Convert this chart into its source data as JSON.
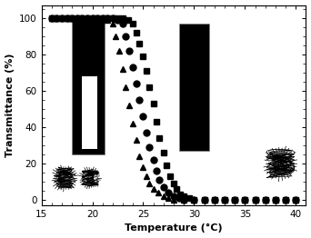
{
  "title": "",
  "xlabel": "Temperature (°C)",
  "ylabel": "Transmittance (%)",
  "xlim": [
    15.5,
    41
  ],
  "ylim": [
    -3,
    107
  ],
  "xticks": [
    15,
    20,
    25,
    30,
    35,
    40
  ],
  "yticks": [
    0,
    20,
    40,
    60,
    80,
    100
  ],
  "background_color": "#ffffff",
  "series": {
    "triangles": {
      "marker": "^",
      "markersize": 5,
      "x": [
        16,
        16.5,
        17,
        17.5,
        18,
        18.5,
        19,
        19.5,
        20,
        20.5,
        21,
        21.5,
        22,
        22.3,
        22.6,
        23,
        23.3,
        23.6,
        24,
        24.3,
        24.6,
        25,
        25.3,
        25.6,
        26,
        26.5,
        27,
        27.5,
        28,
        29,
        30,
        31,
        32,
        33,
        34,
        35,
        36,
        37,
        38,
        39,
        40
      ],
      "y": [
        100,
        100,
        100,
        100,
        100,
        100,
        100,
        100,
        100,
        100,
        100,
        99,
        97,
        90,
        82,
        72,
        62,
        52,
        42,
        33,
        24,
        18,
        13,
        9,
        6,
        4,
        2,
        1,
        0,
        0,
        0,
        0,
        0,
        0,
        0,
        0,
        0,
        0,
        0,
        0,
        0
      ]
    },
    "circles": {
      "marker": "o",
      "markersize": 5,
      "x": [
        16,
        16.5,
        17,
        17.5,
        18,
        18.5,
        19,
        19.5,
        20,
        20.5,
        21,
        21.5,
        22,
        22.5,
        23,
        23.3,
        23.6,
        24,
        24.3,
        24.6,
        25,
        25.3,
        25.6,
        26,
        26.3,
        26.6,
        27,
        27.5,
        28,
        28.5,
        29,
        30,
        31,
        32,
        33,
        34,
        35,
        36,
        37,
        38,
        39,
        40
      ],
      "y": [
        100,
        100,
        100,
        100,
        100,
        100,
        100,
        100,
        100,
        100,
        100,
        100,
        100,
        99,
        97,
        90,
        82,
        73,
        64,
        55,
        46,
        37,
        29,
        22,
        16,
        11,
        7,
        4,
        2,
        1,
        0,
        0,
        0,
        0,
        0,
        0,
        0,
        0,
        0,
        0,
        0,
        0
      ]
    },
    "squares": {
      "marker": "s",
      "markersize": 5,
      "x": [
        16,
        16.5,
        17,
        17.5,
        18,
        18.5,
        19,
        19.5,
        20,
        20.5,
        21,
        21.5,
        22,
        22.5,
        23,
        23.5,
        24,
        24.3,
        24.6,
        25,
        25.3,
        25.6,
        26,
        26.3,
        26.6,
        27,
        27.3,
        27.6,
        28,
        28.3,
        28.6,
        29,
        29.5,
        30,
        31,
        32,
        33,
        34,
        35,
        36,
        37,
        38,
        39,
        40
      ],
      "y": [
        100,
        100,
        100,
        100,
        100,
        100,
        100,
        100,
        100,
        100,
        100,
        100,
        100,
        100,
        100,
        99,
        97,
        92,
        86,
        79,
        71,
        62,
        53,
        43,
        34,
        26,
        19,
        13,
        9,
        6,
        3,
        2,
        1,
        0,
        0,
        0,
        0,
        0,
        0,
        0,
        0,
        0,
        0,
        0
      ]
    }
  },
  "inset1_data": {
    "xmin": 18.0,
    "xmax": 21.2,
    "ymin": 25.0,
    "ymax": 100.0,
    "inner_xmin": 19.0,
    "inner_xmax": 20.5,
    "inner_ymin": 28.0,
    "inner_ymax": 68.0
  },
  "inset2_data": {
    "xmin": 28.5,
    "xmax": 31.5,
    "ymin": 27.0,
    "ymax": 97.0
  }
}
